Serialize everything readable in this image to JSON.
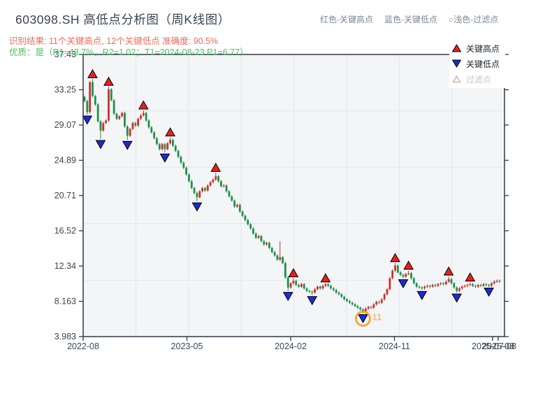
{
  "header": {
    "title": "603098.SH 高低点分析图（周K线图）",
    "subtitle_result": "识别结果: 11个关键高点, 12个关键低点  准确度: 90.5%",
    "subtitle_quality": "优质：是（R1=43.7%，R2=1.02；T1=2024-08-23 P1=6.77）",
    "legend_inline": [
      "红色-关键高点",
      "蓝色-关键低点",
      "○浅色-过滤点"
    ]
  },
  "colors": {
    "up_candle": "#c9302c",
    "down_candle": "#1f8f4d",
    "key_high_marker": "#e02420",
    "key_low_marker": "#1f2bcf",
    "highlight_ring": "#f0a22e",
    "axis": "#2e3a45",
    "tick_label": "#3c4754",
    "plot_bg": "#f4f5f7",
    "grid": "#e3e5e9",
    "subtitle_red": "#e96a5c",
    "subtitle_green": "#4dbd64"
  },
  "chart_data": {
    "type": "candlestick",
    "title": "603098.SH 高低点分析图（周K线图）",
    "frequency": "weekly",
    "x_ticks": [
      "2022-08",
      "2023-05",
      "2024-02",
      "2024-11",
      "2025-08"
    ],
    "x_tick_extra": "2025-07-08",
    "y_ticks": [
      37.43,
      33.25,
      29.07,
      24.89,
      20.71,
      16.52,
      12.34,
      8.163,
      3.983
    ],
    "ylim": [
      3.983,
      37.43
    ],
    "grid": "on",
    "legend_position": "top-right",
    "legend": [
      {
        "label": "关键高点",
        "type": "key-high"
      },
      {
        "label": "关键低点",
        "type": "key-low"
      },
      {
        "label": "过滤点",
        "type": "filtered"
      }
    ],
    "start_open": 32.4,
    "wick_margin": 0.15,
    "closes": [
      31.9,
      30.6,
      34.15,
      32.5,
      31.5,
      29.5,
      28.4,
      29.3,
      29.6,
      33.3,
      32.0,
      30.4,
      29.8,
      30.1,
      30.5,
      28.9,
      27.8,
      28.6,
      29.3,
      29.0,
      29.8,
      30.2,
      30.5,
      29.6,
      28.8,
      28.2,
      27.5,
      26.8,
      26.2,
      26.8,
      26.2,
      26.9,
      27.3,
      26.6,
      26.0,
      25.3,
      24.6,
      24.0,
      23.2,
      22.4,
      21.6,
      21.0,
      20.5,
      21.2,
      21.6,
      21.3,
      21.9,
      22.3,
      22.6,
      23.0,
      22.4,
      21.8,
      21.9,
      21.2,
      20.6,
      20.1,
      19.4,
      19.6,
      18.8,
      18.3,
      17.8,
      17.3,
      16.8,
      16.2,
      15.7,
      15.9,
      15.3,
      14.9,
      15.1,
      14.5,
      14.0,
      13.6,
      13.1,
      13.4,
      12.7,
      11.0,
      9.8,
      10.3,
      10.6,
      10.1,
      9.9,
      10.2,
      9.7,
      9.4,
      9.3,
      9.2,
      9.6,
      9.9,
      9.7,
      10.0,
      10.2,
      10.0,
      9.7,
      9.5,
      9.2,
      9.0,
      8.7,
      8.4,
      8.2,
      8.0,
      7.8,
      7.6,
      7.4,
      7.2,
      6.95,
      7.3,
      7.5,
      7.4,
      7.8,
      8.1,
      8.0,
      8.4,
      9.0,
      9.6,
      10.9,
      11.8,
      12.4,
      11.6,
      11.3,
      11.1,
      11.4,
      11.5,
      10.9,
      10.3,
      9.9,
      9.8,
      9.7,
      9.9,
      10.0,
      9.9,
      10.1,
      10.0,
      10.2,
      10.3,
      10.2,
      10.5,
      10.8,
      10.3,
      9.8,
      9.4,
      9.7,
      9.9,
      10.0,
      10.1,
      10.2,
      10.0,
      9.9,
      10.1,
      10.0,
      10.2,
      10.1,
      10.0,
      10.3,
      10.5,
      10.6,
      10.5
    ],
    "high_overrides": {
      "73": 15.3
    },
    "key_highs": [
      {
        "week": 3,
        "price": 34.5
      },
      {
        "week": 9,
        "price": 33.6
      },
      {
        "week": 22,
        "price": 30.8
      },
      {
        "week": 32,
        "price": 27.6
      },
      {
        "week": 49,
        "price": 23.4
      },
      {
        "week": 78,
        "price": 10.9
      },
      {
        "week": 90,
        "price": 10.3
      },
      {
        "week": 116,
        "price": 12.7
      },
      {
        "week": 121,
        "price": 11.8
      },
      {
        "week": 136,
        "price": 11.1
      },
      {
        "week": 144,
        "price": 10.4
      }
    ],
    "key_lows": [
      {
        "week": 1,
        "price": 30.3
      },
      {
        "week": 6,
        "price": 27.4
      },
      {
        "week": 16,
        "price": 27.3
      },
      {
        "week": 30,
        "price": 25.8
      },
      {
        "week": 42,
        "price": 20.0
      },
      {
        "week": 76,
        "price": 9.4
      },
      {
        "week": 85,
        "price": 8.9
      },
      {
        "week": 104,
        "price": 6.77,
        "highlighted": true
      },
      {
        "week": 119,
        "price": 10.9
      },
      {
        "week": 126,
        "price": 9.5
      },
      {
        "week": 139,
        "price": 9.2
      },
      {
        "week": 151,
        "price": 9.9
      }
    ],
    "highlight": {
      "date": "2024-08-23",
      "price": 6.77,
      "annotation": "11"
    }
  }
}
